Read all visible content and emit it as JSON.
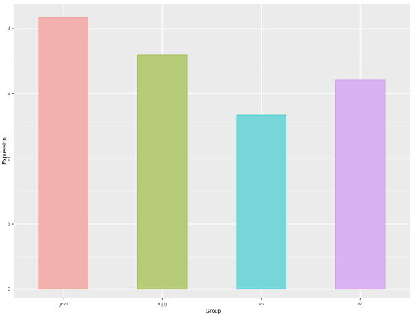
{
  "chart_data": {
    "type": "bar",
    "title": "",
    "xlabel": "Group",
    "ylabel": "Expression",
    "categories": [
      "gear",
      "mpg",
      "vs",
      "wt"
    ],
    "values": [
      4.17,
      3.59,
      2.67,
      3.21
    ],
    "ylim": [
      -0.13,
      4.37
    ],
    "yticks": [
      "0",
      "1",
      "2",
      "3",
      "4"
    ],
    "grid": true,
    "legend": "none",
    "colors": {
      "fills": [
        "#F3B1AE",
        "#B6CC77",
        "#76D6D8",
        "#D9B2F3"
      ],
      "strokes": [
        "#F8766D",
        "#7CAE00",
        "#00BFC4",
        "#C77CFF"
      ],
      "panel_background": "#EBEBEB",
      "grid_major": "#FFFFFF",
      "grid_minor": "#F5F5F5"
    }
  }
}
